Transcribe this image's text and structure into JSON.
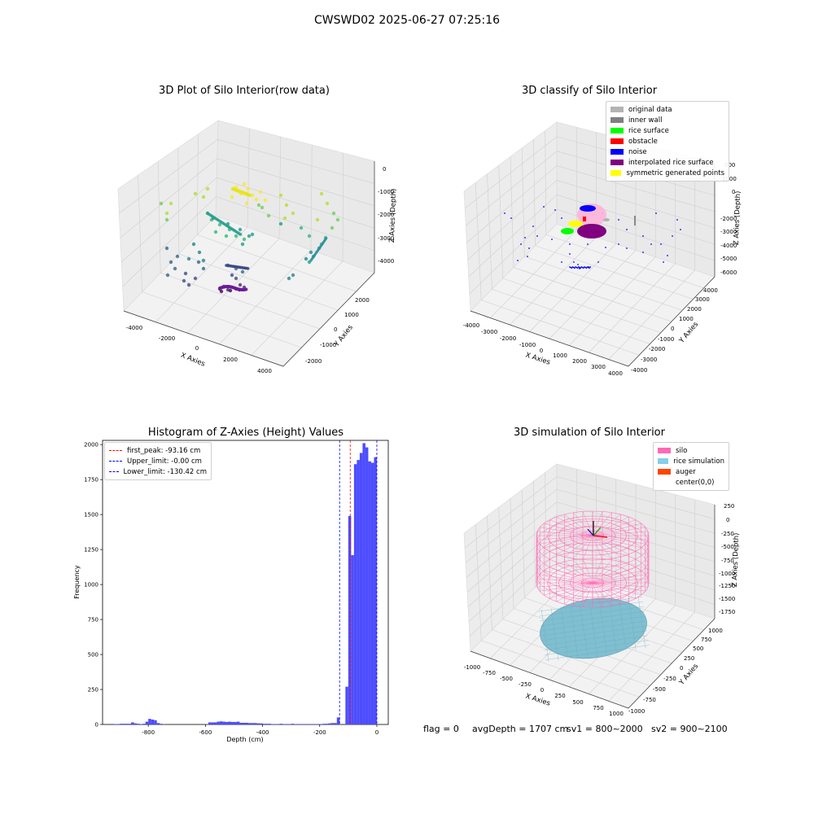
{
  "figure": {
    "suptitle": "CWSWD02 2025-06-27 07:25:16"
  },
  "chart_data": [
    {
      "type": "scatter",
      "title": "3D Plot of Silo Interior(row data)",
      "xlabel": "X Axies",
      "ylabel": "Y Axies",
      "zlabel": "Z Axies (Depth)",
      "x_ticks": [
        "-4000",
        "-2000",
        "0",
        "2000",
        "4000"
      ],
      "y_ticks": [
        "-2000",
        "-1000",
        "0",
        "1000",
        "2000"
      ],
      "z_ticks": [
        "0",
        "-1000",
        "-2000",
        "-3000",
        "-4000"
      ],
      "colormap": "viridis",
      "grid": true
    },
    {
      "type": "scatter",
      "title": "3D classify of Silo Interior",
      "xlabel": "X Axies",
      "ylabel": "Y Axies",
      "zlabel": "Z Axies (Depth)",
      "x_ticks": [
        "-4000",
        "-3000",
        "-2000",
        "-1000",
        "0",
        "1000",
        "2000",
        "3000",
        "4000"
      ],
      "y_ticks": [
        "-4000",
        "-3000",
        "-2000",
        "-1000",
        "0",
        "1000",
        "2000",
        "3000",
        "4000"
      ],
      "z_ticks": [
        "1000",
        "0",
        "-1000",
        "-2000",
        "-3000",
        "-4000",
        "-5000",
        "-6000"
      ],
      "z_tick_partial": "000",
      "legend_position": "top-right",
      "legend": [
        {
          "label": "original data",
          "color": "#b3b3b3"
        },
        {
          "label": "inner wall",
          "color": "#808080"
        },
        {
          "label": "rice surface",
          "color": "#00ff00"
        },
        {
          "label": "obstacle",
          "color": "#ff0000"
        },
        {
          "label": "noise",
          "color": "#0000ff"
        },
        {
          "label": "interpolated rice surface",
          "color": "#800080"
        },
        {
          "label": "symmetric generated points",
          "color": "#ffff00"
        }
      ],
      "grid": true
    },
    {
      "type": "bar",
      "title": "Histogram of Z-Axies (Height) Values",
      "xlabel": "Depth (cm)",
      "ylabel": "Frequency",
      "xlim": [
        -960,
        40
      ],
      "ylim": [
        0,
        2030
      ],
      "x_ticks": [
        -800,
        -600,
        -400,
        -200,
        0
      ],
      "y_ticks": [
        0,
        250,
        500,
        750,
        1000,
        1250,
        1500,
        1750,
        2000
      ],
      "bar_color": "#4d4dff",
      "bin_width": 10,
      "bins": [
        [
          -920,
          3
        ],
        [
          -910,
          3
        ],
        [
          -900,
          5
        ],
        [
          -890,
          5
        ],
        [
          -880,
          5
        ],
        [
          -870,
          5
        ],
        [
          -860,
          15
        ],
        [
          -850,
          8
        ],
        [
          -840,
          5
        ],
        [
          -830,
          3
        ],
        [
          -820,
          5
        ],
        [
          -810,
          20
        ],
        [
          -800,
          40
        ],
        [
          -790,
          35
        ],
        [
          -780,
          30
        ],
        [
          -770,
          10
        ],
        [
          -760,
          5
        ],
        [
          -750,
          3
        ],
        [
          -600,
          3
        ],
        [
          -590,
          15
        ],
        [
          -580,
          15
        ],
        [
          -570,
          15
        ],
        [
          -560,
          20
        ],
        [
          -550,
          22
        ],
        [
          -540,
          20
        ],
        [
          -530,
          18
        ],
        [
          -520,
          20
        ],
        [
          -510,
          18
        ],
        [
          -500,
          18
        ],
        [
          -490,
          20
        ],
        [
          -480,
          12
        ],
        [
          -470,
          12
        ],
        [
          -460,
          12
        ],
        [
          -450,
          10
        ],
        [
          -440,
          10
        ],
        [
          -430,
          10
        ],
        [
          -420,
          8
        ],
        [
          -410,
          8
        ],
        [
          -400,
          5
        ],
        [
          -390,
          5
        ],
        [
          -380,
          5
        ],
        [
          -370,
          3
        ],
        [
          -360,
          3
        ],
        [
          -350,
          3
        ],
        [
          -340,
          5
        ],
        [
          -330,
          3
        ],
        [
          -320,
          3
        ],
        [
          -310,
          3
        ],
        [
          -300,
          5
        ],
        [
          -290,
          3
        ],
        [
          -280,
          3
        ],
        [
          -270,
          3
        ],
        [
          -260,
          3
        ],
        [
          -250,
          3
        ],
        [
          -240,
          3
        ],
        [
          -230,
          3
        ],
        [
          -220,
          3
        ],
        [
          -210,
          3
        ],
        [
          -200,
          3
        ],
        [
          -190,
          5
        ],
        [
          -180,
          5
        ],
        [
          -170,
          8
        ],
        [
          -160,
          10
        ],
        [
          -150,
          10
        ],
        [
          -140,
          50
        ],
        [
          -110,
          270
        ],
        [
          -100,
          1490
        ],
        [
          -90,
          1210
        ],
        [
          -80,
          1860
        ],
        [
          -70,
          1890
        ],
        [
          -60,
          1940
        ],
        [
          -50,
          2010
        ],
        [
          -40,
          1980
        ],
        [
          -30,
          1880
        ],
        [
          -20,
          1870
        ],
        [
          -10,
          1910
        ]
      ],
      "lines": [
        {
          "label": "first_peak: -93.16 cm",
          "x": -93.16,
          "color": "#ff0000"
        },
        {
          "label": "Upper_limit: -0.00 cm",
          "x": 0.0,
          "color": "#0000ff"
        },
        {
          "label": "Lower_limit: -130.42 cm",
          "x": -130.42,
          "color": "#0000ff"
        }
      ],
      "legend_position": "top-left",
      "grid": false
    },
    {
      "type": "scatter",
      "title": "3D simulation of Silo Interior",
      "xlabel": "X Axies",
      "ylabel": "Y Axies",
      "zlabel": "Z Axies (Depth)",
      "x_ticks": [
        "-1000",
        "-750",
        "-500",
        "-250",
        "0",
        "250",
        "500",
        "750",
        "1000"
      ],
      "y_ticks": [
        "-1000",
        "-750",
        "-500",
        "-250",
        "0",
        "250",
        "500",
        "750",
        "1000"
      ],
      "z_ticks": [
        "250",
        "0",
        "-250",
        "-500",
        "-750",
        "-1000",
        "-1250",
        "-1500",
        "-1750"
      ],
      "legend_position": "top-right",
      "legend": [
        {
          "label": "silo",
          "color": "#ff69b4"
        },
        {
          "label": "rice simulation",
          "color": "#87ceeb"
        },
        {
          "label": "auger",
          "color": "#ff4500"
        },
        {
          "label": "center(0,0)",
          "color": ""
        }
      ],
      "grid": true
    }
  ],
  "footer": {
    "flag": "flag = 0",
    "avg": "avgDepth = 1707 cm",
    "sv1": "sv1 = 800~2000",
    "sv2": "sv2 = 900~2100"
  }
}
